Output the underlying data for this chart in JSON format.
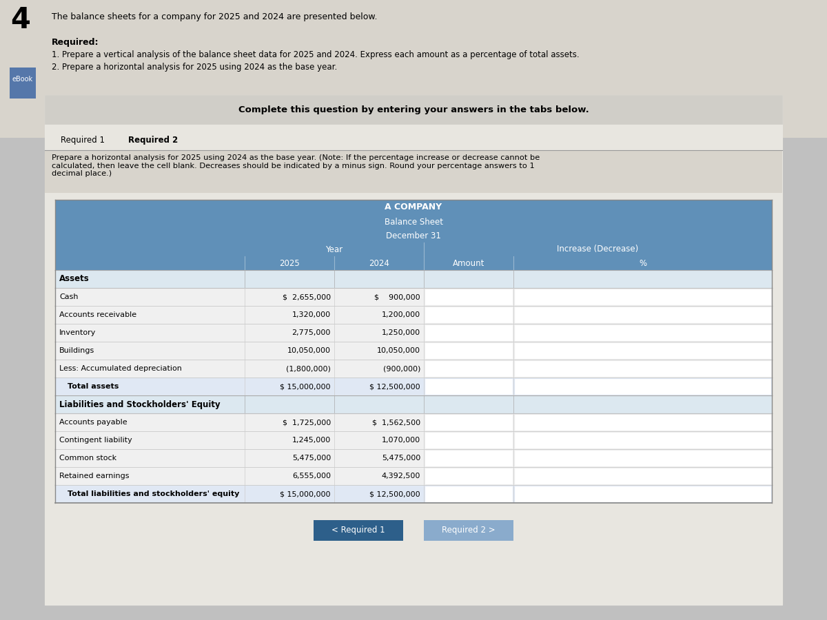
{
  "page_number": "4",
  "intro_text": "The balance sheets for a company for 2025 and 2024 are presented below.",
  "required_label": "Required:",
  "req1_text": "1. Prepare a vertical analysis of the balance sheet data for 2025 and 2024. Express each amount as a percentage of total assets.",
  "req2_text": "2. Prepare a horizontal analysis for 2025 using 2024 as the base year.",
  "ebook_label": "eBook",
  "complete_text": "Complete this question by entering your answers in the tabs below.",
  "tab1": "Required 1",
  "tab2": "Required 2",
  "instruction_text": "Prepare a horizontal analysis for 2025 using 2024 as the base year. (Note: If the percentage increase or decrease cannot be\ncalculated, then leave the cell blank. Decreases should be indicated by a minus sign. Round your percentage answers to 1\ndecimal place.)",
  "company_name": "A COMPANY",
  "sheet_title": "Balance Sheet",
  "date_line": "December 31",
  "col_year": "Year",
  "col_increase": "Increase (Decrease)",
  "col_2025": "2025",
  "col_2024": "2024",
  "col_amount": "Amount",
  "col_pct": "%",
  "section_assets": "Assets",
  "rows_assets": [
    {
      "label": "Cash",
      "val2025": "$  2,655,000",
      "val2024": "$    900,000",
      "bold": false,
      "indent": false
    },
    {
      "label": "Accounts receivable",
      "val2025": "1,320,000",
      "val2024": "1,200,000",
      "bold": false,
      "indent": false
    },
    {
      "label": "Inventory",
      "val2025": "2,775,000",
      "val2024": "1,250,000",
      "bold": false,
      "indent": false
    },
    {
      "label": "Buildings",
      "val2025": "10,050,000",
      "val2024": "10,050,000",
      "bold": false,
      "indent": false
    },
    {
      "label": "Less: Accumulated depreciation",
      "val2025": "(1,800,000)",
      "val2024": "(900,000)",
      "bold": false,
      "indent": false
    },
    {
      "label": "Total assets",
      "val2025": "$ 15,000,000",
      "val2024": "$ 12,500,000",
      "bold": true,
      "indent": true
    }
  ],
  "section_liabilities": "Liabilities and Stockholders' Equity",
  "rows_liabilities": [
    {
      "label": "Accounts payable",
      "val2025": "$  1,725,000",
      "val2024": "$  1,562,500",
      "bold": false,
      "indent": false
    },
    {
      "label": "Contingent liability",
      "val2025": "1,245,000",
      "val2024": "1,070,000",
      "bold": false,
      "indent": false
    },
    {
      "label": "Common stock",
      "val2025": "5,475,000",
      "val2024": "5,475,000",
      "bold": false,
      "indent": false
    },
    {
      "label": "Retained earnings",
      "val2025": "6,555,000",
      "val2024": "4,392,500",
      "bold": false,
      "indent": false
    },
    {
      "label": "Total liabilities and stockholders' equity",
      "val2025": "$ 15,000,000",
      "val2024": "$ 12,500,000",
      "bold": true,
      "indent": true
    }
  ],
  "btn1_text": "< Required 1",
  "btn2_text": "Required 2 >",
  "outer_bg": "#c0c0c0",
  "top_area_bg": "#d8d4cc",
  "card_bg": "#e8e6e0",
  "banner_bg": "#d0cec8",
  "tab1_bg": "#e8e6e0",
  "tab2_bg": "#e8e6e0",
  "instr_bg": "#d8d4cc",
  "header_bg": "#6090b8",
  "row_bg1": "#f0f0f0",
  "row_bg2": "#e8e8e8",
  "section_row_bg": "#dce8f0",
  "total_row_bg": "#e0e8f4",
  "btn1_color": "#2d5f8a",
  "btn2_color": "#8aabcc",
  "white": "#ffffff",
  "table_border": "#888888"
}
